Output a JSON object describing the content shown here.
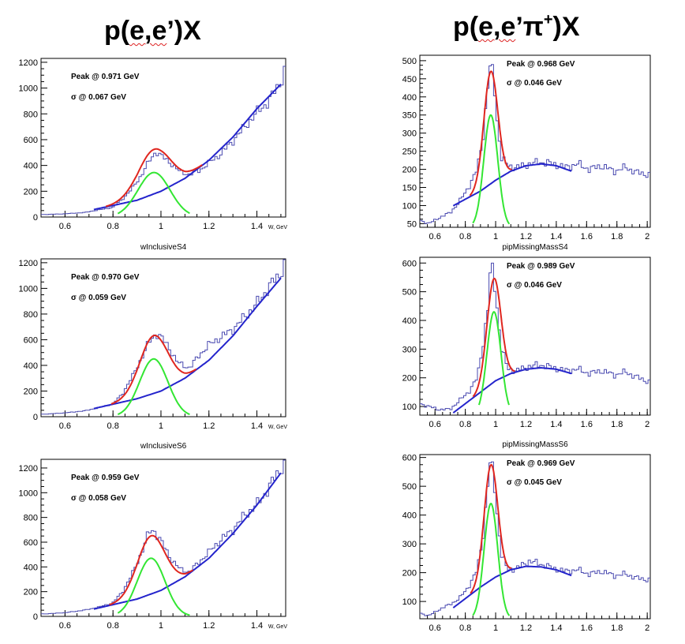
{
  "headers": {
    "left": {
      "a": "p(",
      "b": "e,e",
      "c": "’)X"
    },
    "right": {
      "a": "p(",
      "b": "e,e",
      "c": "’π",
      "sup": "+",
      "d": ")X"
    }
  },
  "colors": {
    "histogram": "#4a4ab0",
    "total_fit": "#e0261f",
    "signal_fit": "#33e633",
    "background_fit": "#2424cc",
    "frame": "#000000"
  },
  "chart_data": [
    {
      "type": "line",
      "title": "",
      "xlabel": "W, GeV",
      "ylabel": "",
      "xlim": [
        0.5,
        1.52
      ],
      "ylim": [
        0,
        1230
      ],
      "xticks": [
        0.6,
        0.8,
        1,
        1.2,
        1.4
      ],
      "xtick_labels": [
        "0.6",
        "0.8",
        "1",
        "1.2",
        "1.4"
      ],
      "yticks": [
        0,
        200,
        400,
        600,
        800,
        1000,
        1200
      ],
      "ytick_labels": [
        "0",
        "200",
        "400",
        "600",
        "800",
        "1000",
        "1200"
      ],
      "annotations": [
        "Peak @ 0.971 GeV",
        "σ @ 0.067 GeV"
      ],
      "peak": 0.971,
      "sigma": 0.067,
      "amp": 345,
      "bkg": [
        [
          0.7,
          50
        ],
        [
          0.9,
          130
        ],
        [
          1.0,
          200
        ],
        [
          1.1,
          300
        ],
        [
          1.2,
          440
        ],
        [
          1.3,
          620
        ],
        [
          1.4,
          840
        ],
        [
          1.5,
          1030
        ]
      ],
      "fit_range": [
        0.72,
        1.5
      ],
      "signal_range": [
        0.82,
        1.12
      ],
      "hist_points": [
        [
          0.52,
          20
        ],
        [
          0.6,
          25
        ],
        [
          0.68,
          35
        ],
        [
          0.74,
          55
        ],
        [
          0.8,
          75
        ],
        [
          0.84,
          140
        ],
        [
          0.88,
          220
        ],
        [
          0.92,
          330
        ],
        [
          0.95,
          430
        ],
        [
          0.98,
          510
        ],
        [
          1.0,
          475
        ],
        [
          1.04,
          420
        ],
        [
          1.08,
          350
        ],
        [
          1.12,
          330
        ],
        [
          1.16,
          360
        ],
        [
          1.2,
          420
        ],
        [
          1.25,
          490
        ],
        [
          1.3,
          590
        ],
        [
          1.35,
          700
        ],
        [
          1.4,
          810
        ],
        [
          1.45,
          900
        ],
        [
          1.5,
          1050
        ],
        [
          1.52,
          1160
        ]
      ],
      "series": [
        {
          "name": "",
          "role": "data histogram"
        },
        {
          "name": "",
          "role": "total fit"
        },
        {
          "name": "",
          "role": "gaussian signal"
        },
        {
          "name": "",
          "role": "polynomial background"
        }
      ]
    },
    {
      "type": "line",
      "title": "wInclusiveS4",
      "xlabel": "W, GeV",
      "ylabel": "",
      "xlim": [
        0.5,
        1.52
      ],
      "ylim": [
        0,
        1230
      ],
      "xticks": [
        0.6,
        0.8,
        1,
        1.2,
        1.4
      ],
      "xtick_labels": [
        "0.6",
        "0.8",
        "1",
        "1.2",
        "1.4"
      ],
      "yticks": [
        0,
        200,
        400,
        600,
        800,
        1000,
        1200
      ],
      "ytick_labels": [
        "0",
        "200",
        "400",
        "600",
        "800",
        "1000",
        "1200"
      ],
      "annotations": [
        "Peak @ 0.970 GeV",
        "σ @ 0.059 GeV"
      ],
      "peak": 0.97,
      "sigma": 0.059,
      "amp": 450,
      "bkg": [
        [
          0.7,
          55
        ],
        [
          0.9,
          140
        ],
        [
          1.0,
          200
        ],
        [
          1.1,
          300
        ],
        [
          1.2,
          440
        ],
        [
          1.3,
          630
        ],
        [
          1.4,
          860
        ],
        [
          1.5,
          1080
        ]
      ],
      "fit_range": [
        0.72,
        1.5
      ],
      "signal_range": [
        0.82,
        1.12
      ],
      "hist_points": [
        [
          0.52,
          20
        ],
        [
          0.6,
          30
        ],
        [
          0.68,
          45
        ],
        [
          0.74,
          70
        ],
        [
          0.8,
          100
        ],
        [
          0.84,
          180
        ],
        [
          0.88,
          310
        ],
        [
          0.92,
          460
        ],
        [
          0.95,
          580
        ],
        [
          0.98,
          650
        ],
        [
          1.0,
          620
        ],
        [
          1.03,
          550
        ],
        [
          1.07,
          420
        ],
        [
          1.12,
          380
        ],
        [
          1.16,
          480
        ],
        [
          1.2,
          560
        ],
        [
          1.25,
          620
        ],
        [
          1.3,
          680
        ],
        [
          1.35,
          780
        ],
        [
          1.4,
          880
        ],
        [
          1.45,
          1010
        ],
        [
          1.5,
          1120
        ],
        [
          1.52,
          1240
        ]
      ],
      "series": [
        {
          "name": "",
          "role": "data histogram"
        },
        {
          "name": "",
          "role": "total fit"
        },
        {
          "name": "",
          "role": "gaussian signal"
        },
        {
          "name": "",
          "role": "polynomial background"
        }
      ]
    },
    {
      "type": "line",
      "title": "wInclusiveS6",
      "xlabel": "W, GeV",
      "ylabel": "",
      "xlim": [
        0.5,
        1.52
      ],
      "ylim": [
        0,
        1270
      ],
      "xticks": [
        0.6,
        0.8,
        1,
        1.2,
        1.4
      ],
      "xtick_labels": [
        "0.6",
        "0.8",
        "1",
        "1.2",
        "1.4"
      ],
      "yticks": [
        0,
        200,
        400,
        600,
        800,
        1000,
        1200
      ],
      "ytick_labels": [
        "0",
        "200",
        "400",
        "600",
        "800",
        "1000",
        "1200"
      ],
      "annotations": [
        "Peak @ 0.959 GeV",
        "σ @ 0.058 GeV"
      ],
      "peak": 0.959,
      "sigma": 0.058,
      "amp": 470,
      "bkg": [
        [
          0.7,
          50
        ],
        [
          0.9,
          140
        ],
        [
          1.0,
          210
        ],
        [
          1.1,
          320
        ],
        [
          1.2,
          470
        ],
        [
          1.3,
          670
        ],
        [
          1.4,
          900
        ],
        [
          1.5,
          1160
        ]
      ],
      "fit_range": [
        0.72,
        1.5
      ],
      "signal_range": [
        0.82,
        1.12
      ],
      "hist_points": [
        [
          0.52,
          20
        ],
        [
          0.6,
          30
        ],
        [
          0.68,
          50
        ],
        [
          0.74,
          75
        ],
        [
          0.8,
          110
        ],
        [
          0.84,
          200
        ],
        [
          0.88,
          340
        ],
        [
          0.92,
          520
        ],
        [
          0.95,
          680
        ],
        [
          0.97,
          700
        ],
        [
          1.0,
          610
        ],
        [
          1.04,
          470
        ],
        [
          1.08,
          380
        ],
        [
          1.12,
          360
        ],
        [
          1.16,
          440
        ],
        [
          1.2,
          520
        ],
        [
          1.25,
          620
        ],
        [
          1.3,
          700
        ],
        [
          1.35,
          820
        ],
        [
          1.4,
          900
        ],
        [
          1.45,
          1040
        ],
        [
          1.5,
          1200
        ],
        [
          1.52,
          1260
        ]
      ],
      "series": [
        {
          "name": "",
          "role": "data histogram"
        },
        {
          "name": "",
          "role": "total fit"
        },
        {
          "name": "",
          "role": "gaussian signal"
        },
        {
          "name": "",
          "role": "polynomial background"
        }
      ]
    },
    {
      "type": "line",
      "title": "",
      "xlabel": "",
      "ylabel": "",
      "xlim": [
        0.5,
        2.02
      ],
      "ylim": [
        40,
        515
      ],
      "xticks": [
        0.6,
        0.8,
        1,
        1.2,
        1.4,
        1.6,
        1.8,
        2
      ],
      "xtick_labels": [
        "0.6",
        "0.8",
        "1",
        "1.2",
        "1.4",
        "1.6",
        "1.8",
        "2"
      ],
      "yticks": [
        50,
        100,
        150,
        200,
        250,
        300,
        350,
        400,
        450,
        500
      ],
      "ytick_labels": [
        "50",
        "100",
        "150",
        "200",
        "250",
        "300",
        "350",
        "400",
        "450",
        "500"
      ],
      "annotations": [
        "Peak @ 0.968 GeV",
        "σ @ 0.046 GeV"
      ],
      "peak": 0.968,
      "sigma": 0.046,
      "amp": 310,
      "bkg": [
        [
          0.7,
          95
        ],
        [
          0.9,
          140
        ],
        [
          1.0,
          170
        ],
        [
          1.1,
          195
        ],
        [
          1.2,
          210
        ],
        [
          1.3,
          215
        ],
        [
          1.4,
          210
        ],
        [
          1.5,
          195
        ]
      ],
      "fit_range": [
        0.72,
        1.5
      ],
      "signal_range": [
        0.85,
        1.09
      ],
      "hist_points": [
        [
          0.5,
          60
        ],
        [
          0.56,
          50
        ],
        [
          0.62,
          65
        ],
        [
          0.7,
          80
        ],
        [
          0.76,
          110
        ],
        [
          0.82,
          150
        ],
        [
          0.88,
          200
        ],
        [
          0.92,
          300
        ],
        [
          0.95,
          440
        ],
        [
          0.97,
          490
        ],
        [
          0.99,
          440
        ],
        [
          1.01,
          330
        ],
        [
          1.04,
          230
        ],
        [
          1.08,
          210
        ],
        [
          1.14,
          205
        ],
        [
          1.22,
          215
        ],
        [
          1.3,
          220
        ],
        [
          1.38,
          215
        ],
        [
          1.46,
          205
        ],
        [
          1.54,
          215
        ],
        [
          1.62,
          200
        ],
        [
          1.7,
          210
        ],
        [
          1.78,
          195
        ],
        [
          1.86,
          205
        ],
        [
          1.94,
          190
        ],
        [
          2.02,
          185
        ]
      ],
      "series": [
        {
          "name": "",
          "role": "data histogram"
        },
        {
          "name": "",
          "role": "total fit"
        },
        {
          "name": "",
          "role": "gaussian signal"
        },
        {
          "name": "",
          "role": "polynomial background"
        }
      ]
    },
    {
      "type": "line",
      "title": "pipMissingMassS4",
      "xlabel": "",
      "ylabel": "",
      "xlim": [
        0.5,
        2.02
      ],
      "ylim": [
        70,
        620
      ],
      "xticks": [
        0.6,
        0.8,
        1,
        1.2,
        1.4,
        1.6,
        1.8,
        2
      ],
      "xtick_labels": [
        "0.6",
        "0.8",
        "1",
        "1.2",
        "1.4",
        "1.6",
        "1.8",
        "2"
      ],
      "yticks": [
        100,
        200,
        300,
        400,
        500,
        600
      ],
      "ytick_labels": [
        "100",
        "200",
        "300",
        "400",
        "500",
        "600"
      ],
      "annotations": [
        "Peak @ 0.989 GeV",
        "σ @ 0.046 GeV"
      ],
      "peak": 0.989,
      "sigma": 0.046,
      "amp": 360,
      "bkg": [
        [
          0.7,
          70
        ],
        [
          0.9,
          150
        ],
        [
          1.0,
          190
        ],
        [
          1.1,
          215
        ],
        [
          1.2,
          230
        ],
        [
          1.3,
          235
        ],
        [
          1.4,
          230
        ],
        [
          1.5,
          215
        ]
      ],
      "fit_range": [
        0.72,
        1.5
      ],
      "signal_range": [
        0.89,
        1.09
      ],
      "hist_points": [
        [
          0.5,
          110
        ],
        [
          0.56,
          100
        ],
        [
          0.62,
          90
        ],
        [
          0.7,
          90
        ],
        [
          0.76,
          120
        ],
        [
          0.82,
          150
        ],
        [
          0.88,
          200
        ],
        [
          0.92,
          330
        ],
        [
          0.95,
          450
        ],
        [
          0.97,
          600
        ],
        [
          0.99,
          540
        ],
        [
          1.01,
          440
        ],
        [
          1.04,
          300
        ],
        [
          1.08,
          230
        ],
        [
          1.14,
          225
        ],
        [
          1.22,
          240
        ],
        [
          1.3,
          245
        ],
        [
          1.38,
          235
        ],
        [
          1.46,
          225
        ],
        [
          1.54,
          230
        ],
        [
          1.62,
          215
        ],
        [
          1.7,
          225
        ],
        [
          1.78,
          210
        ],
        [
          1.86,
          220
        ],
        [
          1.94,
          200
        ],
        [
          2.02,
          185
        ]
      ],
      "series": [
        {
          "name": "",
          "role": "data histogram"
        },
        {
          "name": "",
          "role": "total fit"
        },
        {
          "name": "",
          "role": "gaussian signal"
        },
        {
          "name": "",
          "role": "polynomial background"
        }
      ]
    },
    {
      "type": "line",
      "title": "pipMissingMassS6",
      "xlabel": "",
      "ylabel": "",
      "xlim": [
        0.5,
        2.02
      ],
      "ylim": [
        40,
        610
      ],
      "xticks": [
        0.6,
        0.8,
        1,
        1.2,
        1.4,
        1.6,
        1.8,
        2
      ],
      "xtick_labels": [
        "0.6",
        "0.8",
        "1",
        "1.2",
        "1.4",
        "1.6",
        "1.8",
        "2"
      ],
      "yticks": [
        100,
        200,
        300,
        400,
        500,
        600
      ],
      "ytick_labels": [
        "100",
        "200",
        "300",
        "400",
        "500",
        "600"
      ],
      "annotations": [
        "Peak @ 0.969 GeV",
        "σ @ 0.045 GeV"
      ],
      "peak": 0.969,
      "sigma": 0.045,
      "amp": 400,
      "bkg": [
        [
          0.7,
          70
        ],
        [
          0.9,
          150
        ],
        [
          1.0,
          185
        ],
        [
          1.1,
          210
        ],
        [
          1.2,
          222
        ],
        [
          1.3,
          220
        ],
        [
          1.4,
          210
        ],
        [
          1.5,
          190
        ]
      ],
      "fit_range": [
        0.72,
        1.5
      ],
      "signal_range": [
        0.85,
        1.09
      ],
      "hist_points": [
        [
          0.5,
          60
        ],
        [
          0.56,
          50
        ],
        [
          0.62,
          70
        ],
        [
          0.7,
          90
        ],
        [
          0.76,
          110
        ],
        [
          0.82,
          150
        ],
        [
          0.88,
          210
        ],
        [
          0.92,
          340
        ],
        [
          0.95,
          520
        ],
        [
          0.97,
          590
        ],
        [
          0.99,
          520
        ],
        [
          1.01,
          400
        ],
        [
          1.04,
          260
        ],
        [
          1.08,
          210
        ],
        [
          1.14,
          215
        ],
        [
          1.22,
          240
        ],
        [
          1.3,
          230
        ],
        [
          1.38,
          215
        ],
        [
          1.46,
          205
        ],
        [
          1.54,
          210
        ],
        [
          1.62,
          195
        ],
        [
          1.7,
          205
        ],
        [
          1.78,
          190
        ],
        [
          1.86,
          195
        ],
        [
          1.94,
          180
        ],
        [
          2.02,
          175
        ]
      ],
      "series": [
        {
          "name": "",
          "role": "data histogram"
        },
        {
          "name": "",
          "role": "total fit"
        },
        {
          "name": "",
          "role": "gaussian signal"
        },
        {
          "name": "",
          "role": "polynomial background"
        }
      ]
    }
  ]
}
